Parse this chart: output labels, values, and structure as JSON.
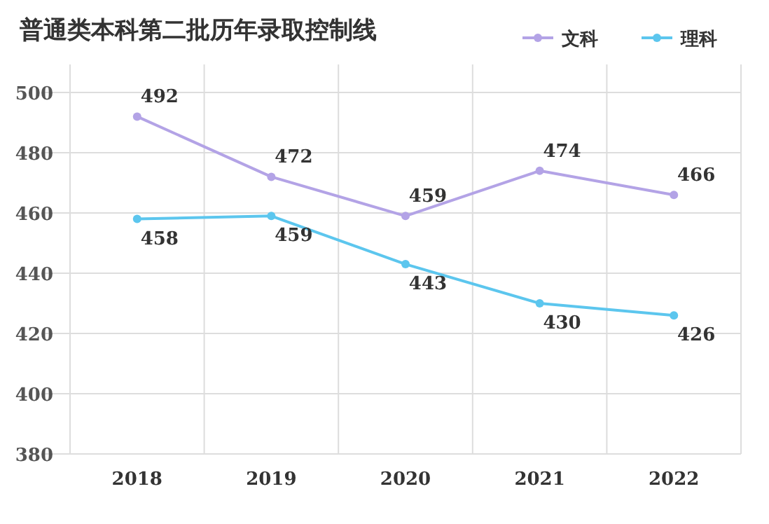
{
  "chart_data": {
    "type": "line",
    "title": "普通类本科第二批历年录取控制线",
    "categories": [
      "2018",
      "2019",
      "2020",
      "2021",
      "2022"
    ],
    "series": [
      {
        "name": "文科",
        "color": "#b3a3e6",
        "values": [
          492,
          472,
          459,
          474,
          466
        ]
      },
      {
        "name": "理科",
        "color": "#5cc6ee",
        "values": [
          458,
          459,
          443,
          430,
          426
        ]
      }
    ],
    "ylim": [
      380,
      500
    ],
    "yticks": [
      380,
      400,
      420,
      440,
      460,
      480,
      500
    ],
    "grid": true,
    "legend": "top right",
    "marker": "circle",
    "line_style": "solid",
    "data_labels": true
  }
}
